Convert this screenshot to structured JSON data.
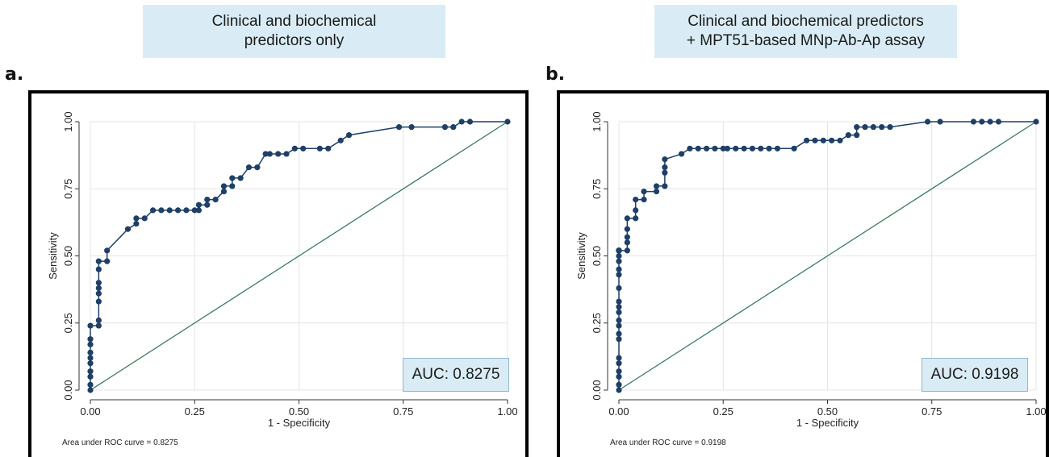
{
  "panels": [
    {
      "header": "Clinical and biochemical\npredictors only",
      "letter": "a.",
      "auc_label": "AUC: 0.8275",
      "footnote": "Area under ROC curve = 0.8275"
    },
    {
      "header": "Clinical and biochemical predictors\n+ MPT51-based MNp-Ab-Ap assay",
      "letter": "b.",
      "auc_label": "AUC: 0.9198",
      "footnote": "Area under ROC curve = 0.9198"
    }
  ],
  "colors": {
    "curve": "#1f3f66",
    "reference": "#3a7a5a",
    "grid": "#e4e4e4",
    "title_bg": "#d9ecf5"
  },
  "chart_data": [
    {
      "type": "line",
      "title": "",
      "xlabel": "1 - Specificity",
      "ylabel": "Sensitivity",
      "xlim": [
        0,
        1
      ],
      "ylim": [
        0,
        1
      ],
      "xticks": [
        "0.00",
        "0.25",
        "0.50",
        "0.75",
        "1.00"
      ],
      "yticks": [
        "0.00",
        "0.25",
        "0.50",
        "0.75",
        "1.00"
      ],
      "grid": true,
      "auc": 0.8275,
      "series": [
        {
          "x": [
            0,
            0,
            0,
            0,
            0,
            0,
            0,
            0,
            0,
            0,
            0.02,
            0.02,
            0.02,
            0.02,
            0.02,
            0.02,
            0.02,
            0.02,
            0.04,
            0.04,
            0.09,
            0.11,
            0.11,
            0.13,
            0.15,
            0.17,
            0.19,
            0.21,
            0.23,
            0.25,
            0.26,
            0.26,
            0.28,
            0.28,
            0.3,
            0.32,
            0.32,
            0.34,
            0.34,
            0.36,
            0.38,
            0.4,
            0.42,
            0.43,
            0.45,
            0.47,
            0.49,
            0.51,
            0.55,
            0.57,
            0.6,
            0.62,
            0.74,
            0.77,
            0.85,
            0.87,
            0.89,
            0.91,
            1.0
          ],
          "y": [
            0,
            0.02,
            0.05,
            0.07,
            0.1,
            0.12,
            0.14,
            0.17,
            0.19,
            0.24,
            0.24,
            0.26,
            0.33,
            0.36,
            0.38,
            0.4,
            0.45,
            0.48,
            0.48,
            0.52,
            0.6,
            0.62,
            0.64,
            0.64,
            0.67,
            0.67,
            0.67,
            0.67,
            0.67,
            0.67,
            0.67,
            0.69,
            0.69,
            0.71,
            0.71,
            0.74,
            0.76,
            0.76,
            0.79,
            0.79,
            0.83,
            0.83,
            0.88,
            0.88,
            0.88,
            0.88,
            0.9,
            0.9,
            0.9,
            0.9,
            0.93,
            0.95,
            0.98,
            0.98,
            0.98,
            0.98,
            1.0,
            1.0,
            1.0
          ]
        }
      ]
    },
    {
      "type": "line",
      "title": "",
      "xlabel": "1 - Specificity",
      "ylabel": "Sensitivity",
      "xlim": [
        0,
        1
      ],
      "ylim": [
        0,
        1
      ],
      "xticks": [
        "0.00",
        "0.25",
        "0.50",
        "0.75",
        "1.00"
      ],
      "yticks": [
        "0.00",
        "0.25",
        "0.50",
        "0.75",
        "1.00"
      ],
      "grid": true,
      "auc": 0.9198,
      "series": [
        {
          "x": [
            0,
            0,
            0,
            0,
            0,
            0,
            0,
            0,
            0,
            0,
            0,
            0,
            0,
            0,
            0,
            0,
            0,
            0,
            0,
            0,
            0,
            0,
            0,
            0,
            0,
            0,
            0.02,
            0.02,
            0.02,
            0.02,
            0.02,
            0.04,
            0.04,
            0.04,
            0.06,
            0.06,
            0.09,
            0.09,
            0.11,
            0.11,
            0.11,
            0.11,
            0.15,
            0.17,
            0.19,
            0.21,
            0.23,
            0.25,
            0.26,
            0.28,
            0.3,
            0.32,
            0.34,
            0.36,
            0.38,
            0.42,
            0.45,
            0.47,
            0.49,
            0.51,
            0.53,
            0.55,
            0.57,
            0.57,
            0.59,
            0.61,
            0.63,
            0.65,
            0.74,
            0.77,
            0.85,
            0.87,
            0.89,
            0.91,
            1.0
          ],
          "y": [
            0,
            0.02,
            0.05,
            0.07,
            0.1,
            0.12,
            0.19,
            0.21,
            0.24,
            0.26,
            0.29,
            0.31,
            0.33,
            0.38,
            0.43,
            0.45,
            0.48,
            0.5,
            0.52,
            0.52,
            0.52,
            0.52,
            0.52,
            0.52,
            0.52,
            0.52,
            0.52,
            0.55,
            0.57,
            0.6,
            0.64,
            0.64,
            0.67,
            0.71,
            0.71,
            0.74,
            0.74,
            0.76,
            0.76,
            0.81,
            0.83,
            0.86,
            0.88,
            0.9,
            0.9,
            0.9,
            0.9,
            0.9,
            0.9,
            0.9,
            0.9,
            0.9,
            0.9,
            0.9,
            0.9,
            0.9,
            0.93,
            0.93,
            0.93,
            0.93,
            0.93,
            0.95,
            0.95,
            0.98,
            0.98,
            0.98,
            0.98,
            0.98,
            1.0,
            1.0,
            1.0,
            1.0,
            1.0,
            1.0,
            1.0
          ]
        }
      ]
    }
  ]
}
